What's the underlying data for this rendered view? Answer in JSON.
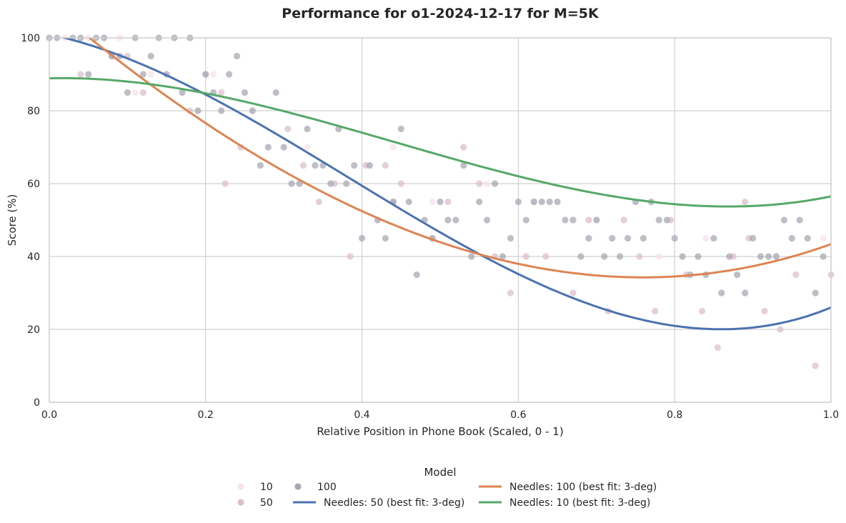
{
  "chart_data": {
    "type": "scatter",
    "title": "Performance for o1-2024-12-17 for M=5K",
    "xlabel": "Relative Position in Phone Book (Scaled, 0 - 1)",
    "ylabel": "Score (%)",
    "xlim": [
      0,
      1
    ],
    "ylim": [
      0,
      100
    ],
    "x_ticks": [
      "0.0",
      "0.2",
      "0.4",
      "0.6",
      "0.8",
      "1.0"
    ],
    "y_ticks": [
      "0",
      "20",
      "40",
      "60",
      "80",
      "100"
    ],
    "grid": true,
    "legend": {
      "title": "Model",
      "placement": "bottom-center",
      "entries": [
        {
          "label": "10",
          "kind": "marker",
          "color": "#f6e3e8"
        },
        {
          "label": "50",
          "kind": "marker",
          "color": "#dcbfcd"
        },
        {
          "label": "100",
          "kind": "marker",
          "color": "#a8a8b4"
        },
        {
          "label": "Needles: 50 (best fit: 3-deg)",
          "kind": "line",
          "color": "#4c72b0"
        },
        {
          "label": "Needles: 100 (best fit: 3-deg)",
          "kind": "line",
          "color": "#dd8452"
        },
        {
          "label": "Needles: 10 (best fit: 3-deg)",
          "kind": "line",
          "color": "#55a868"
        }
      ]
    },
    "scatter_series": [
      {
        "name": "10",
        "color": "#f6e3e8",
        "points": [
          [
            0.02,
            100
          ],
          [
            0.05,
            100
          ],
          [
            0.09,
            100
          ],
          [
            0.11,
            85
          ],
          [
            0.13,
            90
          ],
          [
            0.19,
            80
          ],
          [
            0.21,
            90
          ],
          [
            0.26,
            80
          ],
          [
            0.33,
            70
          ],
          [
            0.44,
            70
          ],
          [
            0.49,
            55
          ],
          [
            0.56,
            60
          ],
          [
            0.62,
            55
          ],
          [
            0.7,
            50
          ],
          [
            0.78,
            40
          ],
          [
            0.84,
            45
          ],
          [
            0.93,
            40
          ],
          [
            0.99,
            45
          ]
        ]
      },
      {
        "name": "50",
        "color": "#dcbfcd",
        "points": [
          [
            0.04,
            90
          ],
          [
            0.08,
            95
          ],
          [
            0.1,
            95
          ],
          [
            0.12,
            85
          ],
          [
            0.18,
            80
          ],
          [
            0.2,
            90
          ],
          [
            0.22,
            85
          ],
          [
            0.225,
            60
          ],
          [
            0.245,
            70
          ],
          [
            0.305,
            75
          ],
          [
            0.325,
            65
          ],
          [
            0.345,
            55
          ],
          [
            0.365,
            60
          ],
          [
            0.385,
            40
          ],
          [
            0.405,
            65
          ],
          [
            0.43,
            65
          ],
          [
            0.44,
            55
          ],
          [
            0.45,
            60
          ],
          [
            0.49,
            45
          ],
          [
            0.51,
            55
          ],
          [
            0.53,
            70
          ],
          [
            0.55,
            60
          ],
          [
            0.57,
            40
          ],
          [
            0.59,
            30
          ],
          [
            0.61,
            40
          ],
          [
            0.635,
            40
          ],
          [
            0.67,
            30
          ],
          [
            0.69,
            50
          ],
          [
            0.715,
            25
          ],
          [
            0.735,
            50
          ],
          [
            0.755,
            40
          ],
          [
            0.775,
            25
          ],
          [
            0.795,
            50
          ],
          [
            0.815,
            35
          ],
          [
            0.835,
            25
          ],
          [
            0.855,
            15
          ],
          [
            0.875,
            40
          ],
          [
            0.89,
            55
          ],
          [
            0.895,
            45
          ],
          [
            0.915,
            25
          ],
          [
            0.935,
            20
          ],
          [
            0.955,
            35
          ],
          [
            0.98,
            10
          ],
          [
            1.0,
            35
          ]
        ]
      },
      {
        "name": "100",
        "color": "#a8a8b4",
        "points": [
          [
            0.0,
            100
          ],
          [
            0.01,
            100
          ],
          [
            0.03,
            100
          ],
          [
            0.04,
            100
          ],
          [
            0.05,
            90
          ],
          [
            0.06,
            100
          ],
          [
            0.07,
            100
          ],
          [
            0.08,
            95
          ],
          [
            0.09,
            95
          ],
          [
            0.1,
            85
          ],
          [
            0.11,
            100
          ],
          [
            0.12,
            90
          ],
          [
            0.13,
            95
          ],
          [
            0.14,
            100
          ],
          [
            0.15,
            90
          ],
          [
            0.16,
            100
          ],
          [
            0.17,
            85
          ],
          [
            0.18,
            100
          ],
          [
            0.19,
            80
          ],
          [
            0.2,
            90
          ],
          [
            0.21,
            85
          ],
          [
            0.22,
            80
          ],
          [
            0.23,
            90
          ],
          [
            0.24,
            95
          ],
          [
            0.25,
            85
          ],
          [
            0.26,
            80
          ],
          [
            0.27,
            65
          ],
          [
            0.28,
            70
          ],
          [
            0.29,
            85
          ],
          [
            0.3,
            70
          ],
          [
            0.31,
            60
          ],
          [
            0.32,
            60
          ],
          [
            0.33,
            75
          ],
          [
            0.34,
            65
          ],
          [
            0.35,
            65
          ],
          [
            0.36,
            60
          ],
          [
            0.37,
            75
          ],
          [
            0.38,
            60
          ],
          [
            0.39,
            65
          ],
          [
            0.4,
            45
          ],
          [
            0.41,
            65
          ],
          [
            0.42,
            50
          ],
          [
            0.43,
            45
          ],
          [
            0.44,
            55
          ],
          [
            0.45,
            75
          ],
          [
            0.46,
            55
          ],
          [
            0.47,
            35
          ],
          [
            0.48,
            50
          ],
          [
            0.49,
            45
          ],
          [
            0.5,
            55
          ],
          [
            0.51,
            50
          ],
          [
            0.52,
            50
          ],
          [
            0.53,
            65
          ],
          [
            0.54,
            40
          ],
          [
            0.55,
            55
          ],
          [
            0.56,
            50
          ],
          [
            0.57,
            60
          ],
          [
            0.58,
            40
          ],
          [
            0.59,
            45
          ],
          [
            0.6,
            55
          ],
          [
            0.61,
            50
          ],
          [
            0.62,
            55
          ],
          [
            0.63,
            55
          ],
          [
            0.64,
            55
          ],
          [
            0.65,
            55
          ],
          [
            0.66,
            50
          ],
          [
            0.67,
            50
          ],
          [
            0.68,
            40
          ],
          [
            0.69,
            45
          ],
          [
            0.7,
            50
          ],
          [
            0.71,
            40
          ],
          [
            0.72,
            45
          ],
          [
            0.73,
            40
          ],
          [
            0.74,
            45
          ],
          [
            0.75,
            55
          ],
          [
            0.76,
            45
          ],
          [
            0.77,
            55
          ],
          [
            0.78,
            50
          ],
          [
            0.79,
            50
          ],
          [
            0.8,
            45
          ],
          [
            0.81,
            40
          ],
          [
            0.82,
            35
          ],
          [
            0.83,
            40
          ],
          [
            0.84,
            35
          ],
          [
            0.85,
            45
          ],
          [
            0.86,
            30
          ],
          [
            0.87,
            40
          ],
          [
            0.88,
            35
          ],
          [
            0.89,
            30
          ],
          [
            0.9,
            45
          ],
          [
            0.91,
            40
          ],
          [
            0.92,
            40
          ],
          [
            0.93,
            40
          ],
          [
            0.94,
            50
          ],
          [
            0.95,
            45
          ],
          [
            0.96,
            50
          ],
          [
            0.97,
            45
          ],
          [
            0.98,
            30
          ],
          [
            0.99,
            40
          ]
        ]
      }
    ],
    "fit_series": [
      {
        "name": "Needles: 50 (best fit: 3-deg)",
        "color": "#4c72b0",
        "degree": 3,
        "coefficients": [
          101.0,
          -46.3,
          -221.1,
          192.4
        ]
      },
      {
        "name": "Needles: 100 (best fit: 3-deg)",
        "color": "#dd8452",
        "degree": 3,
        "coefficients": [
          109.1,
          -181.2,
          87.9,
          27.6
        ]
      },
      {
        "name": "Needles: 10 (best fit: 3-deg)",
        "color": "#55a868",
        "degree": 3,
        "coefficients": [
          88.9,
          5.2,
          -151.9,
          114.3
        ]
      }
    ]
  }
}
